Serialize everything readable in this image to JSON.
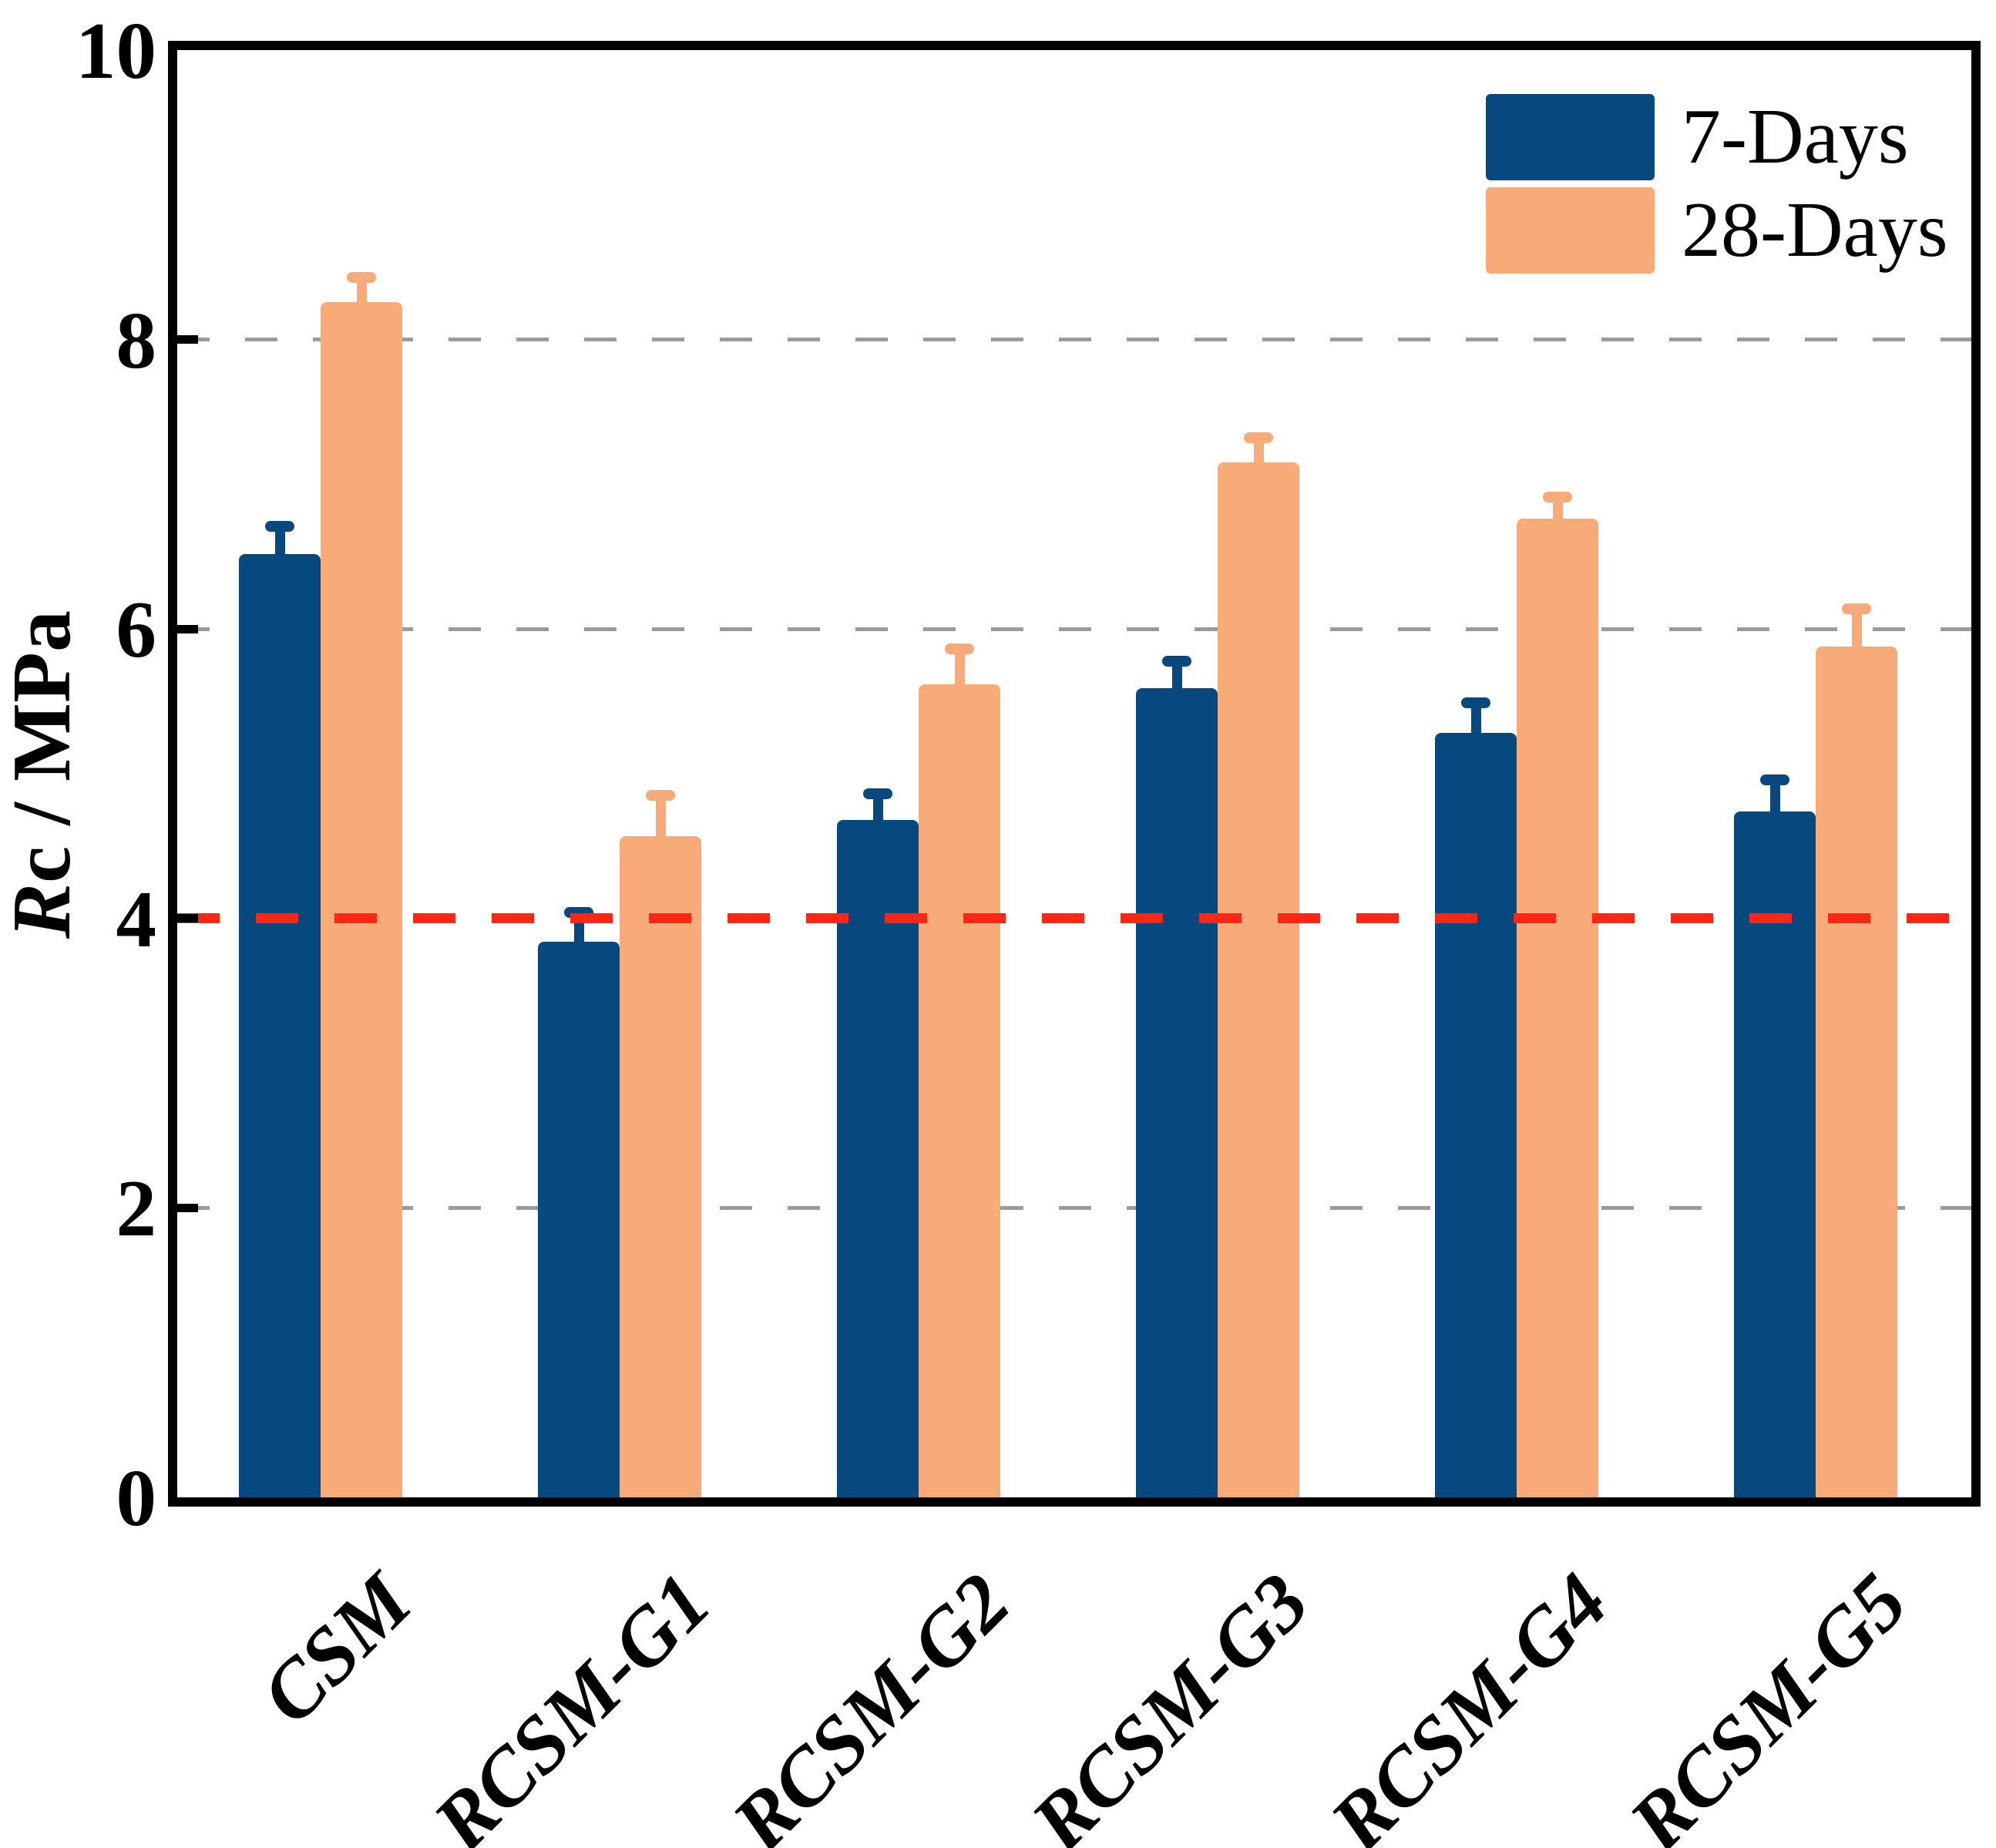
{
  "chart_data": {
    "type": "bar",
    "title": "",
    "xlabel": "",
    "ylabel_italic": "R",
    "ylabel_rest": "c / MPa",
    "ylim": [
      0,
      10
    ],
    "yticks": [
      0,
      2,
      4,
      6,
      8,
      10
    ],
    "categories": [
      "CSM",
      "RCSM-G1",
      "RCSM-G2",
      "RCSM-G3",
      "RCSM-G4",
      "RCSM-G5"
    ],
    "series": [
      {
        "name": "7-Days",
        "color": "#07487e",
        "values": [
          6.52,
          3.84,
          4.68,
          5.59,
          5.28,
          4.74
        ],
        "errors_plus": [
          0.19,
          0.2,
          0.18,
          0.19,
          0.21,
          0.22
        ]
      },
      {
        "name": "28-Days",
        "color": "#f8ab78",
        "values": [
          8.26,
          4.57,
          5.62,
          7.15,
          6.76,
          5.88
        ],
        "errors_plus": [
          0.17,
          0.28,
          0.24,
          0.17,
          0.15,
          0.26
        ]
      }
    ],
    "gridlines": {
      "values": [
        2,
        6,
        8
      ],
      "color": "#9b9b9b",
      "style": "dashed"
    },
    "reference_line": {
      "value": 4,
      "color": "#ff2713",
      "style": "dashed"
    },
    "legend": {
      "position": "top-right",
      "entries": [
        "7-Days",
        "28-Days"
      ]
    },
    "axis_color": "#000000",
    "grid_on": true
  }
}
